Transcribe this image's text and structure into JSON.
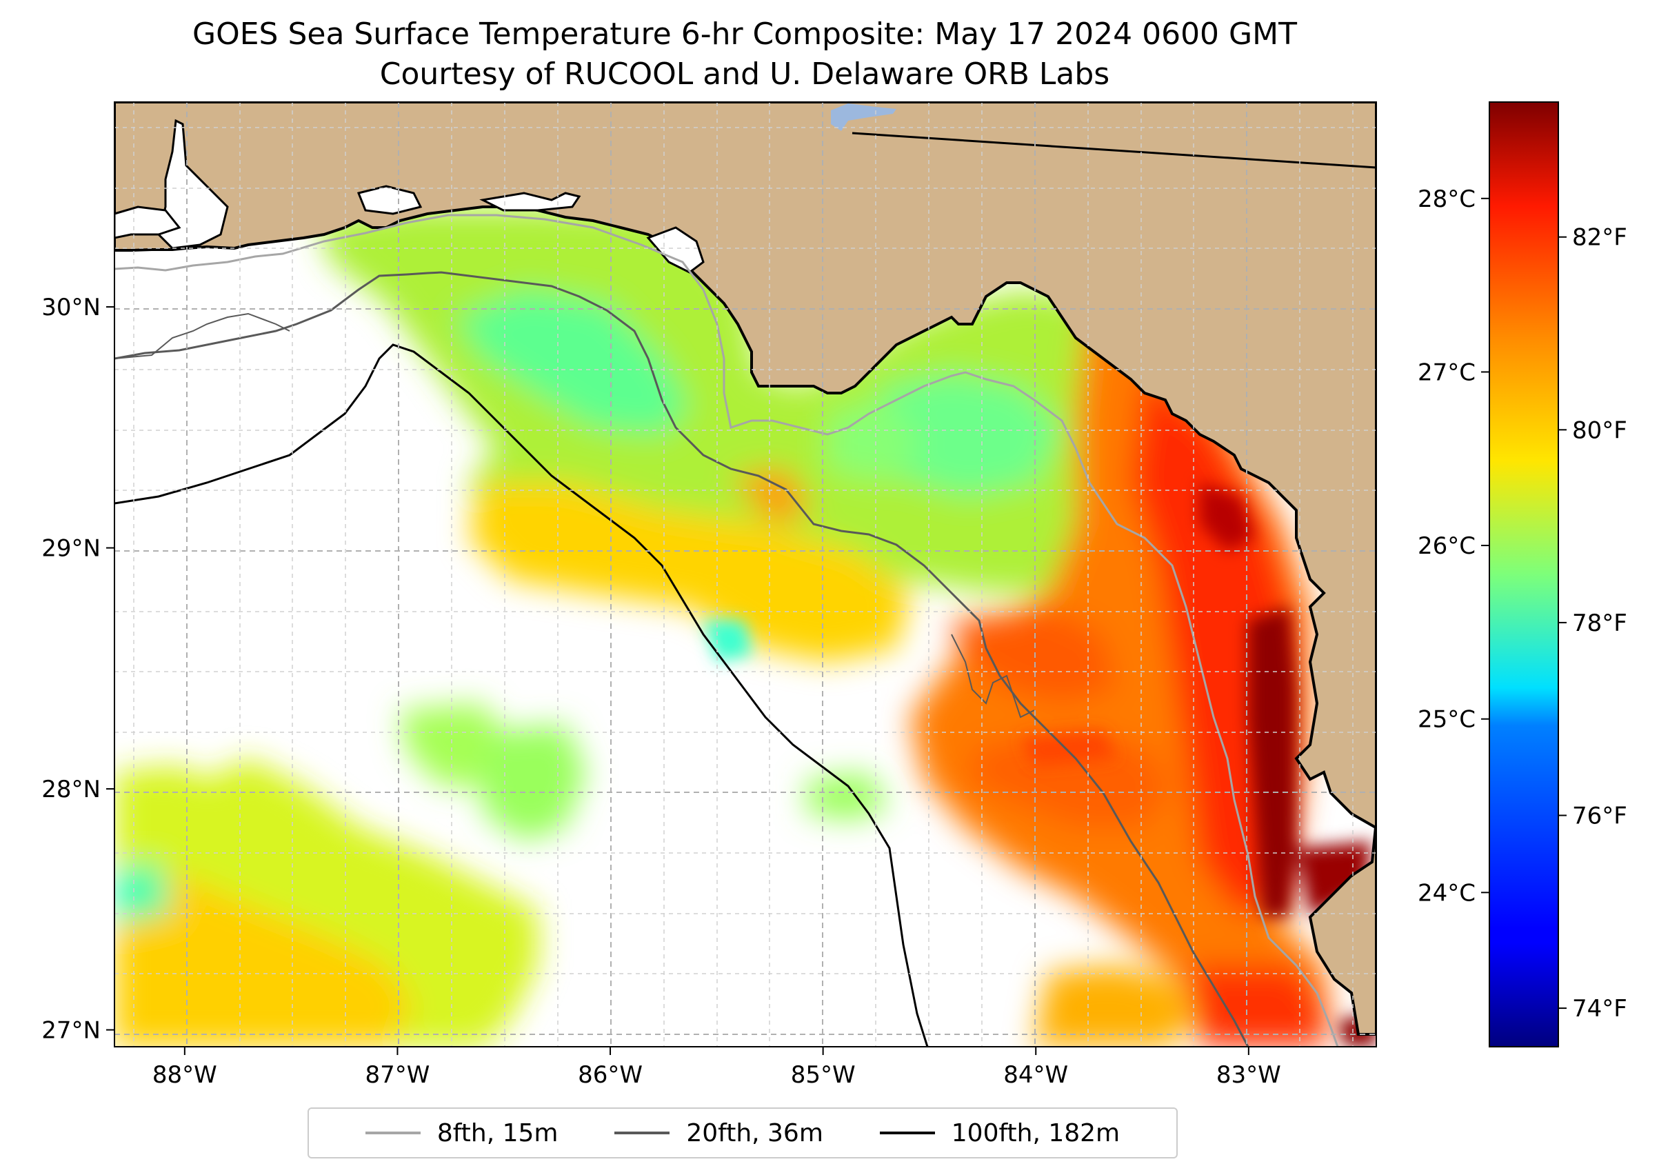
{
  "title": {
    "line1": "GOES Sea Surface Temperature 6-hr Composite: May 17 2024 0600 GMT",
    "line2": "Courtesy of RUCOOL and U. Delaware ORB Labs"
  },
  "map": {
    "extent": {
      "lon_min": -88.33,
      "lon_max": -82.4,
      "lat_min": 26.93,
      "lat_max": 30.85
    },
    "land_color": "#d2b48c",
    "gridlines": "dashed",
    "lon_ticks": [
      {
        "value": -88,
        "label": "88°W"
      },
      {
        "value": -87,
        "label": "87°W"
      },
      {
        "value": -86,
        "label": "86°W"
      },
      {
        "value": -85,
        "label": "85°W"
      },
      {
        "value": -84,
        "label": "84°W"
      },
      {
        "value": -83,
        "label": "83°W"
      }
    ],
    "lat_ticks": [
      {
        "value": 30,
        "label": "30°N"
      },
      {
        "value": 29,
        "label": "29°N"
      },
      {
        "value": 28,
        "label": "28°N"
      },
      {
        "value": 27,
        "label": "27°N"
      }
    ]
  },
  "colorbar": {
    "colormap": "jet",
    "range_f": [
      73.6,
      83.4
    ],
    "fahrenheit_ticks": [
      {
        "value": 74,
        "label": "74°F"
      },
      {
        "value": 76,
        "label": "76°F"
      },
      {
        "value": 78,
        "label": "78°F"
      },
      {
        "value": 80,
        "label": "80°F"
      },
      {
        "value": 82,
        "label": "82°F"
      }
    ],
    "celsius_ticks": [
      {
        "value": 24,
        "label": "24°C"
      },
      {
        "value": 25,
        "label": "25°C"
      },
      {
        "value": 26,
        "label": "26°C"
      },
      {
        "value": 27,
        "label": "27°C"
      },
      {
        "value": 28,
        "label": "28°C"
      }
    ]
  },
  "legend": {
    "placement": "bottom-center",
    "items": [
      {
        "label": "8fth, 15m",
        "color": "#a6a6a6"
      },
      {
        "label": "20fth, 36m",
        "color": "#595959"
      },
      {
        "label": "100fth, 182m",
        "color": "#000000"
      }
    ]
  }
}
